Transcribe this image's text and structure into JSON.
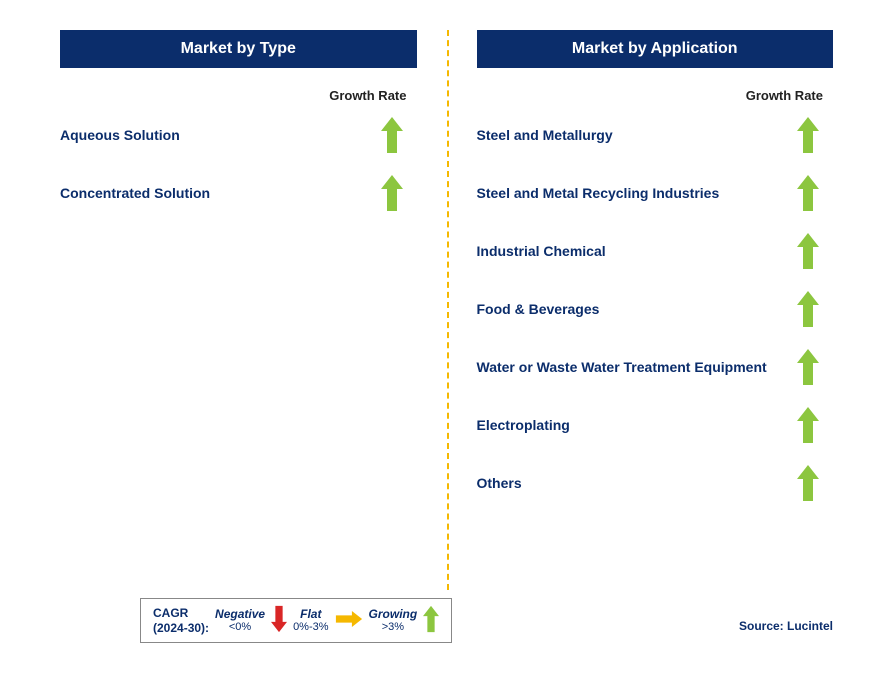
{
  "colors": {
    "header_bg": "#0b2d6b",
    "header_fg": "#ffffff",
    "label_color": "#0b2d6b",
    "growth_label_color": "#222222",
    "divider_color": "#f5b800",
    "arrow_up_color": "#8cc63f",
    "arrow_down_color": "#d92626",
    "arrow_flat_color": "#f5b800",
    "legend_title_color": "#0b2d6b",
    "source_color": "#0b2d6b"
  },
  "left": {
    "title": "Market by Type",
    "growth_header": "Growth Rate",
    "items": [
      {
        "label": "Aqueous Solution",
        "growth": "up"
      },
      {
        "label": "Concentrated Solution",
        "growth": "up"
      }
    ]
  },
  "right": {
    "title": "Market by Application",
    "growth_header": "Growth Rate",
    "items": [
      {
        "label": "Steel and Metallurgy",
        "growth": "up"
      },
      {
        "label": "Steel and Metal Recycling Industries",
        "growth": "up"
      },
      {
        "label": "Industrial Chemical",
        "growth": "up"
      },
      {
        "label": "Food & Beverages",
        "growth": "up"
      },
      {
        "label": "Water or Waste Water Treatment Equipment",
        "growth": "up"
      },
      {
        "label": "Electroplating",
        "growth": "up"
      },
      {
        "label": "Others",
        "growth": "up"
      }
    ]
  },
  "legend": {
    "title_line1": "CAGR",
    "title_line2": "(2024-30):",
    "negative_label": "Negative",
    "negative_range": "<0%",
    "flat_label": "Flat",
    "flat_range": "0%-3%",
    "growing_label": "Growing",
    "growing_range": ">3%"
  },
  "source": "Source: Lucintel",
  "arrow_style": {
    "width": 22,
    "height": 36
  }
}
